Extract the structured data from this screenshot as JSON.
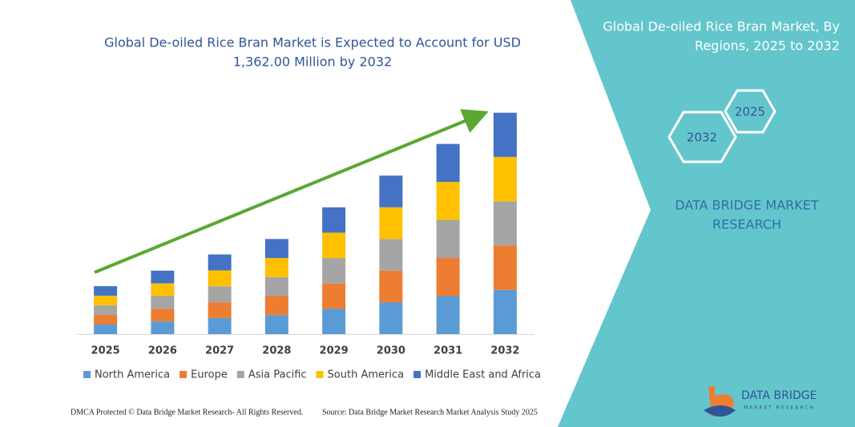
{
  "chart_data": {
    "type": "stacked-bar",
    "title": [
      "Global De-oiled Rice Bran Market is Expected to Account for USD",
      "1,362.00 Million by 2032"
    ],
    "categories": [
      "2025",
      "2026",
      "2027",
      "2028",
      "2029",
      "2030",
      "2031",
      "2032"
    ],
    "series": [
      {
        "name": "North America",
        "color": "#5b9bd5",
        "values": [
          59,
          78,
          98,
          117,
          156,
          195,
          234,
          272
        ]
      },
      {
        "name": "Europe",
        "color": "#ed7d31",
        "values": [
          59,
          78,
          98,
          117,
          156,
          195,
          234,
          273
        ]
      },
      {
        "name": "Asia Pacific",
        "color": "#a5a5a5",
        "values": [
          59,
          78,
          98,
          117,
          156,
          195,
          234,
          272
        ]
      },
      {
        "name": "South America",
        "color": "#ffc000",
        "values": [
          59,
          78,
          98,
          117,
          156,
          195,
          234,
          273
        ]
      },
      {
        "name": "Middle East and Africa",
        "color": "#4472c4",
        "values": [
          59,
          78,
          98,
          117,
          156,
          195,
          234,
          272
        ]
      }
    ],
    "ylim": [
      0,
      1400
    ],
    "legend": "bottom"
  },
  "panel": {
    "title": [
      "Global De-oiled Rice Bran Market, By",
      "Regions, 2025 to 2032"
    ],
    "hexagons": [
      "2025",
      "2032"
    ],
    "brand": [
      "DATA BRIDGE MARKET",
      "RESEARCH"
    ]
  },
  "logo": {
    "name": "DATA BRIDGE",
    "tagline": "MARKET RESEARCH"
  },
  "footer": {
    "left": "DMCA Protected © Data Bridge Market Research- All Rights Reserved.",
    "right": "Source: Data Bridge Market Research Market Analysis Study 2025"
  }
}
